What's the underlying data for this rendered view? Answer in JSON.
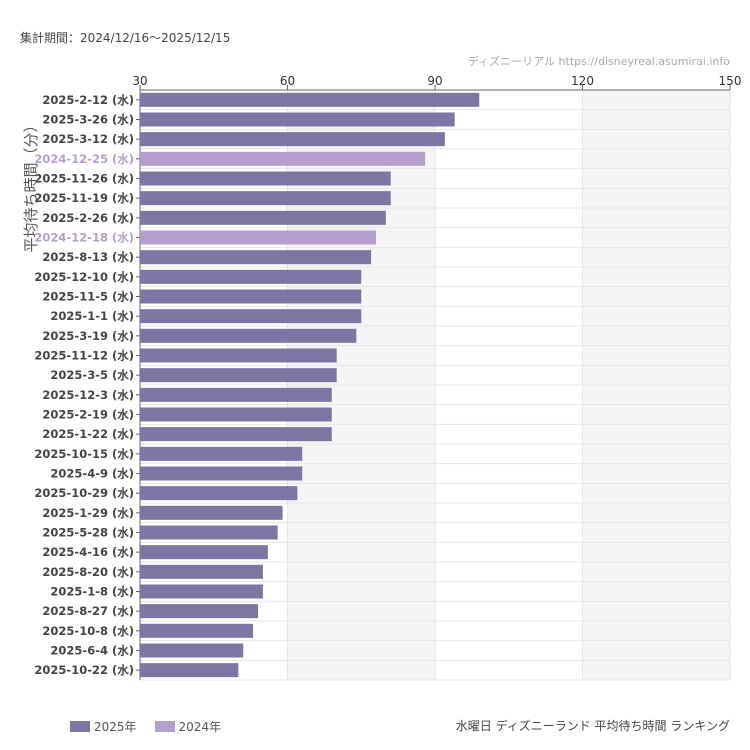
{
  "header": {
    "period": "集計期間：2024/12/16〜2025/12/15",
    "credit": "ディズニーリアル https://disneyreal.asumirai.info"
  },
  "footer": {
    "title": "水曜日 ディズニーランド 平均待ち時間 ランキング"
  },
  "colors": {
    "y2025": "#7b76a4",
    "y2024": "#b59fcf",
    "grid": "#e6e6e6",
    "band": "#f5f5f5"
  },
  "chart_data": {
    "type": "bar",
    "orientation": "horizontal",
    "ylabel": "平均待ち時間（分）",
    "xlim": [
      30,
      150
    ],
    "xticks": [
      "30",
      "60",
      "90",
      "120",
      "150"
    ],
    "legend": [
      {
        "name": "2025年",
        "key": "y2025"
      },
      {
        "name": "2024年",
        "key": "y2024"
      }
    ],
    "legend_position": "bottom-left",
    "categories": [
      "2025-2-12 (水)",
      "2025-3-26 (水)",
      "2025-3-12 (水)",
      "2024-12-25 (水)",
      "2025-11-26 (水)",
      "2025-11-19 (水)",
      "2025-2-26 (水)",
      "2024-12-18 (水)",
      "2025-8-13 (水)",
      "2025-12-10 (水)",
      "2025-11-5 (水)",
      "2025-1-1 (水)",
      "2025-3-19 (水)",
      "2025-11-12 (水)",
      "2025-3-5 (水)",
      "2025-12-3 (水)",
      "2025-2-19 (水)",
      "2025-1-22 (水)",
      "2025-10-15 (水)",
      "2025-4-9 (水)",
      "2025-10-29 (水)",
      "2025-1-29 (水)",
      "2025-5-28 (水)",
      "2025-4-16 (水)",
      "2025-8-20 (水)",
      "2025-1-8 (水)",
      "2025-8-27 (水)",
      "2025-10-8 (水)",
      "2025-6-4 (水)",
      "2025-10-22 (水)"
    ],
    "values": [
      99,
      94,
      92,
      88,
      81,
      81,
      80,
      78,
      77,
      75,
      75,
      75,
      74,
      70,
      70,
      69,
      69,
      69,
      63,
      63,
      62,
      59,
      58,
      56,
      55,
      55,
      54,
      53,
      51,
      50
    ],
    "years": [
      "y2025",
      "y2025",
      "y2025",
      "y2024",
      "y2025",
      "y2025",
      "y2025",
      "y2024",
      "y2025",
      "y2025",
      "y2025",
      "y2025",
      "y2025",
      "y2025",
      "y2025",
      "y2025",
      "y2025",
      "y2025",
      "y2025",
      "y2025",
      "y2025",
      "y2025",
      "y2025",
      "y2025",
      "y2025",
      "y2025",
      "y2025",
      "y2025",
      "y2025",
      "y2025"
    ]
  }
}
